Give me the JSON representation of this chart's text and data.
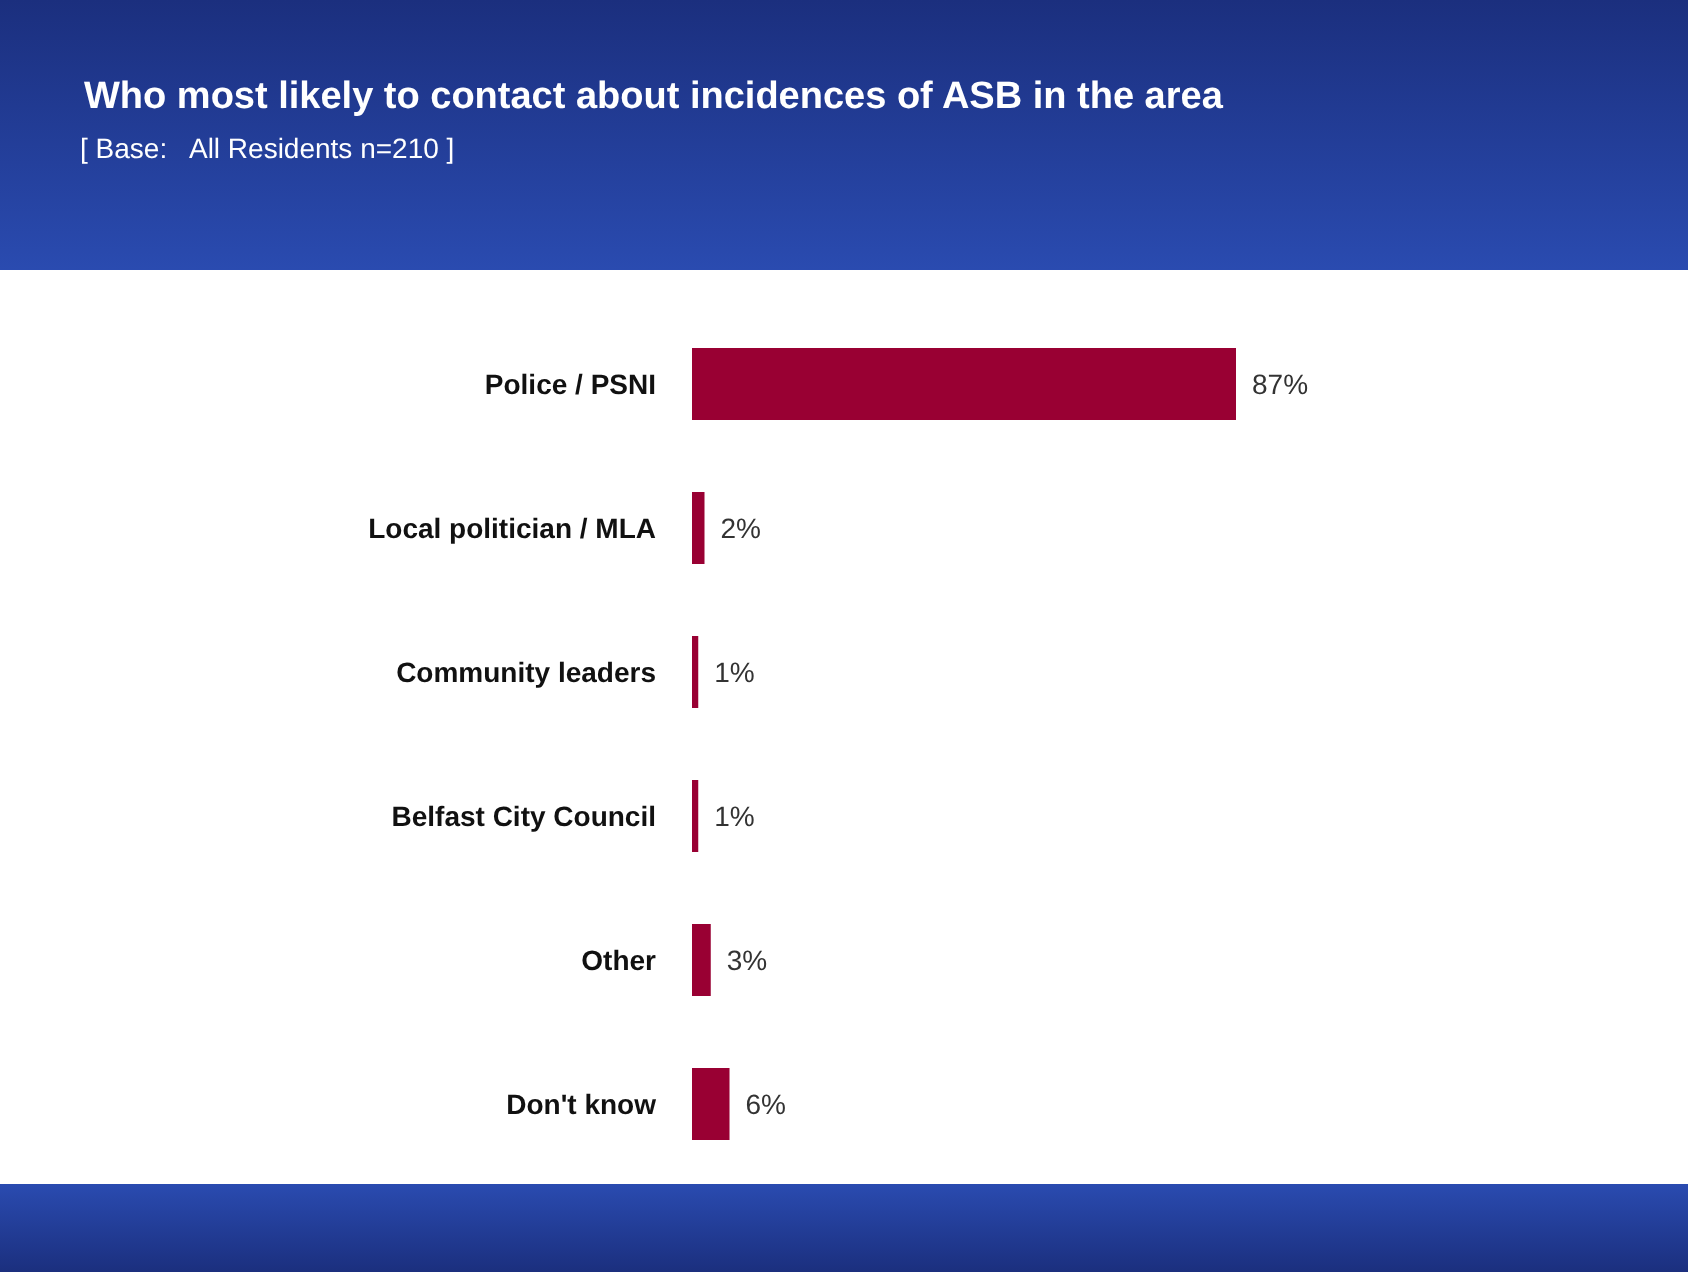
{
  "chart_data": {
    "type": "bar",
    "orientation": "horizontal",
    "title": "Who most likely to contact about incidences of ASB in the area",
    "subtitle": "[ Base:   All Residents n=210 ]",
    "categories": [
      "Police / PSNI",
      "Local politician / MLA",
      "Community leaders",
      "Belfast City Council",
      "Other",
      "Don't know"
    ],
    "values": [
      87,
      2,
      1,
      1,
      3,
      6
    ],
    "value_labels": [
      "87%",
      "2%",
      "1%",
      "1%",
      "3%",
      "6%"
    ],
    "color": "#990033",
    "tick_labels": "y",
    "grid": false,
    "legend": false
  }
}
